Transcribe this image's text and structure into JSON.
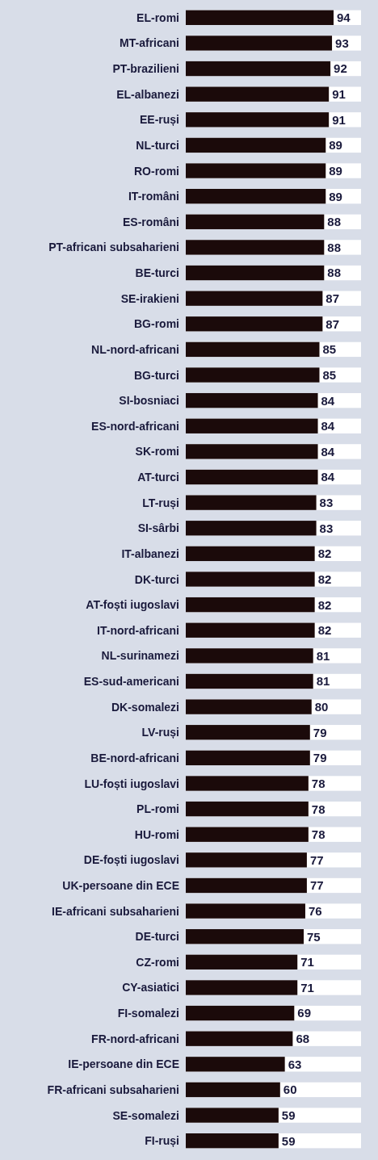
{
  "chart_data": {
    "type": "bar",
    "orientation": "horizontal",
    "data_labels": true,
    "color": "#1b0a0a",
    "categories": [
      "EL-romi",
      "MT-africani",
      "PT-brazilieni",
      "EL-albanezi",
      "EE-ruși",
      "NL-turci",
      "RO-romi",
      "IT-români",
      "ES-români",
      "PT-africani subsaharieni",
      "BE-turci",
      "SE-irakieni",
      "BG-romi",
      "NL-nord-africani",
      "BG-turci",
      "SI-bosniaci",
      "ES-nord-africani",
      "SK-romi",
      "AT-turci",
      "LT-ruși",
      "SI-sârbi",
      "IT-albanezi",
      "DK-turci",
      "AT-foști iugoslavi",
      "IT-nord-africani",
      "NL-surinamezi",
      "ES-sud-americani",
      "DK-somalezi",
      "LV-ruși",
      "BE-nord-africani",
      "LU-foști iugoslavi",
      "PL-romi",
      "HU-romi",
      "DE-foști iugoslavi",
      "UK-persoane din ECE",
      "IE-africani subsaharieni",
      "DE-turci",
      "CZ-romi",
      "CY-asiatici",
      "FI-somalezi",
      "FR-nord-africani",
      "IE-persoane din ECE",
      "FR-africani subsaharieni",
      "SE-somalezi",
      "FI-ruși"
    ],
    "values": [
      94,
      93,
      92,
      91,
      91,
      89,
      89,
      89,
      88,
      88,
      88,
      87,
      87,
      85,
      85,
      84,
      84,
      84,
      84,
      83,
      83,
      82,
      82,
      82,
      82,
      81,
      81,
      80,
      79,
      79,
      78,
      78,
      78,
      77,
      77,
      76,
      75,
      71,
      71,
      69,
      68,
      63,
      60,
      59,
      59
    ]
  }
}
